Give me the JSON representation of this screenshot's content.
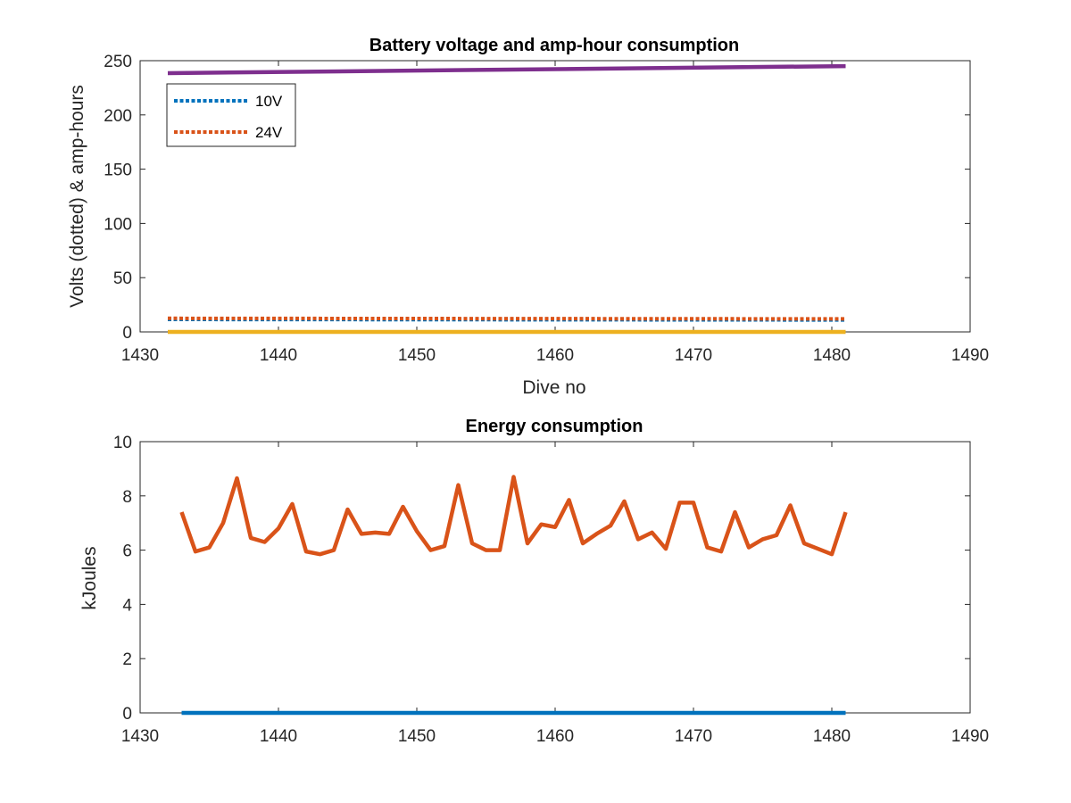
{
  "chart_data": [
    {
      "type": "line",
      "title": "Battery voltage and amp-hour consumption",
      "xlabel": "Dive no",
      "ylabel": "Volts (dotted) & amp-hours",
      "xlim": [
        1430,
        1490
      ],
      "ylim": [
        0,
        250
      ],
      "xticks": [
        1430,
        1440,
        1450,
        1460,
        1470,
        1480,
        1490
      ],
      "yticks": [
        0,
        50,
        100,
        150,
        200,
        250
      ],
      "grid": false,
      "legend": {
        "position": "top-left",
        "entries": [
          "10V",
          "24V"
        ]
      },
      "series": [
        {
          "name": "10V",
          "style": "dotted",
          "color": "#0072BD",
          "x": [
            1432,
            1481
          ],
          "y": [
            11.5,
            11.0
          ]
        },
        {
          "name": "24V",
          "style": "dotted",
          "color": "#D95319",
          "x": [
            1432,
            1481
          ],
          "y": [
            12.5,
            12.0
          ]
        },
        {
          "style": "solid",
          "color": "#EDB120",
          "x": [
            1432,
            1481
          ],
          "y": [
            0,
            0
          ]
        },
        {
          "style": "solid",
          "color": "#7E2F8E",
          "x": [
            1432,
            1481
          ],
          "y": [
            238.5,
            245
          ]
        }
      ]
    },
    {
      "type": "line",
      "title": "Energy consumption",
      "xlabel": "",
      "ylabel": "kJoules",
      "xlim": [
        1430,
        1490
      ],
      "ylim": [
        0,
        10
      ],
      "xticks": [
        1430,
        1440,
        1450,
        1460,
        1470,
        1480,
        1490
      ],
      "yticks": [
        0,
        2,
        4,
        6,
        8,
        10
      ],
      "grid": false,
      "series": [
        {
          "style": "solid",
          "color": "#0072BD",
          "x": [
            1433,
            1481
          ],
          "y": [
            0,
            0
          ]
        },
        {
          "style": "solid",
          "color": "#D95319",
          "x": [
            1433,
            1434,
            1435,
            1436,
            1437,
            1438,
            1439,
            1440,
            1441,
            1442,
            1443,
            1444,
            1445,
            1446,
            1447,
            1448,
            1449,
            1450,
            1451,
            1452,
            1453,
            1454,
            1455,
            1456,
            1457,
            1458,
            1459,
            1460,
            1461,
            1462,
            1463,
            1464,
            1465,
            1466,
            1467,
            1468,
            1469,
            1470,
            1471,
            1472,
            1473,
            1474,
            1475,
            1476,
            1477,
            1478,
            1479,
            1480,
            1481
          ],
          "y": [
            7.4,
            5.95,
            6.1,
            7.0,
            8.65,
            6.45,
            6.3,
            6.8,
            7.7,
            5.95,
            5.85,
            6.0,
            7.5,
            6.6,
            6.65,
            6.6,
            7.6,
            6.7,
            6.0,
            6.15,
            8.4,
            6.25,
            6.0,
            6.0,
            8.7,
            6.25,
            6.95,
            6.85,
            7.85,
            6.25,
            6.6,
            6.9,
            7.8,
            6.4,
            6.65,
            6.05,
            7.75,
            7.75,
            6.1,
            5.95,
            7.4,
            6.1,
            6.4,
            6.55,
            7.65,
            6.25,
            6.05,
            5.85,
            7.4
          ]
        }
      ]
    }
  ]
}
